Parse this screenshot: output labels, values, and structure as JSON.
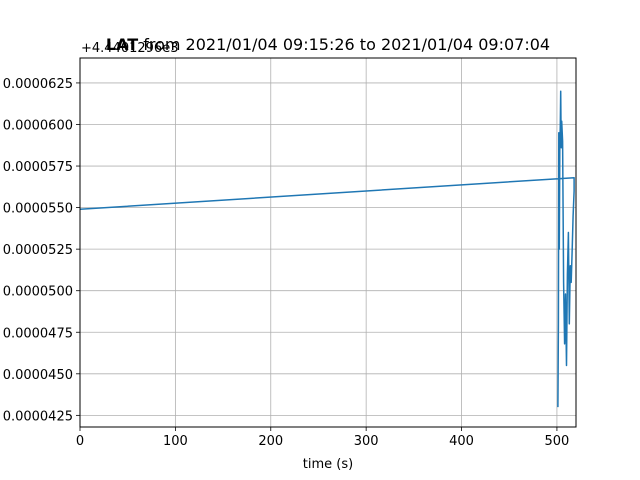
{
  "chart_data": {
    "type": "line",
    "title_bold": "LAT",
    "title_rest": " from 2021/01/04 09:15:26 to 2021/01/04 09:07:04",
    "offset_label": "+4.4401296e3",
    "xlabel": "time (s)",
    "ylabel": "",
    "xlim": [
      0,
      520
    ],
    "ylim": [
      4.18e-05,
      6.4e-05
    ],
    "xticks": [
      0,
      100,
      200,
      300,
      400,
      500
    ],
    "yticks": [
      4.25e-05,
      4.5e-05,
      4.75e-05,
      5e-05,
      5.25e-05,
      5.5e-05,
      5.75e-05,
      6e-05,
      6.25e-05
    ],
    "ytick_labels": [
      "0.0000425",
      "0.0000450",
      "0.0000475",
      "0.0000500",
      "0.0000525",
      "0.0000550",
      "0.0000575",
      "0.0000600",
      "0.0000625"
    ],
    "grid": true,
    "series": [
      {
        "color": "#1f77b4",
        "x": [
          0,
          518,
          518,
          517,
          516,
          515,
          514,
          513,
          512,
          511,
          510,
          509,
          508,
          507,
          506,
          505,
          504.5,
          504,
          503.5,
          503,
          502.5,
          502,
          501.5,
          501
        ],
        "y": [
          5.49e-05,
          5.68e-05,
          5.6e-05,
          5.45e-05,
          5.25e-05,
          5.05e-05,
          5.15e-05,
          4.8e-05,
          5.35e-05,
          5.1e-05,
          4.55e-05,
          4.98e-05,
          4.68e-05,
          5.05e-05,
          5.9e-05,
          6.02e-05,
          5.86e-05,
          6.2e-05,
          6e-05,
          5.85e-05,
          5.25e-05,
          5.95e-05,
          4.8e-05,
          4.3e-05
        ]
      }
    ]
  }
}
